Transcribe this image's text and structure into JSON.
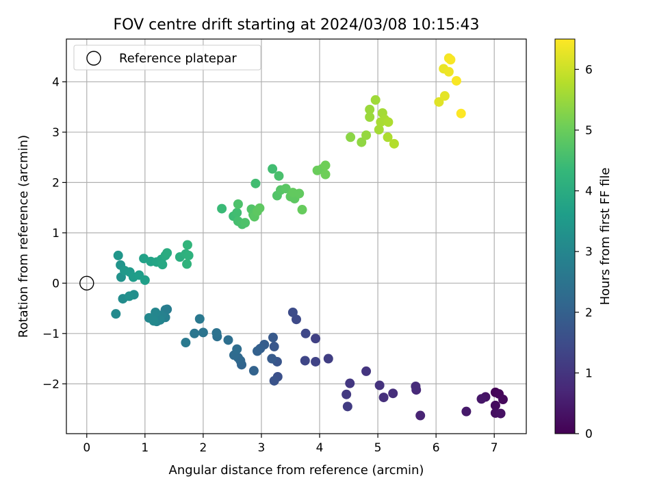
{
  "chart_data": {
    "type": "scatter",
    "title": "FOV centre drift starting at 2024/03/08 10:15:43",
    "xlabel": "Angular distance from reference (arcmin)",
    "ylabel": "Rotation from reference (arcmin)",
    "xlim": [
      -0.35,
      7.55
    ],
    "ylim": [
      -2.99,
      4.85
    ],
    "xticks": [
      "0",
      "1",
      "2",
      "3",
      "4",
      "5",
      "6",
      "7"
    ],
    "yticks": [
      "−2",
      "−1",
      "0",
      "1",
      "2",
      "3",
      "4"
    ],
    "grid": true,
    "legend": {
      "placement": "top-left",
      "entries": [
        "Reference platepar"
      ]
    },
    "reference_point": {
      "x": 0,
      "y": 0
    },
    "colorbar": {
      "label": "Hours from first FF file",
      "range": [
        0,
        6.5
      ],
      "ticks": [
        "0",
        "1",
        "2",
        "3",
        "4",
        "5",
        "6"
      ],
      "colormap": [
        "#440154",
        "#482878",
        "#3e4a89",
        "#31688e",
        "#26828e",
        "#1f9e89",
        "#35b779",
        "#6ece58",
        "#b5de2b",
        "#fde725"
      ]
    },
    "points": [
      {
        "x": 7.02,
        "y": -2.17,
        "t": 0.05
      },
      {
        "x": 7.08,
        "y": -2.2,
        "t": 0.1
      },
      {
        "x": 7.15,
        "y": -2.31,
        "t": 0.15
      },
      {
        "x": 7.02,
        "y": -2.43,
        "t": 0.2
      },
      {
        "x": 7.02,
        "y": -2.58,
        "t": 0.25
      },
      {
        "x": 7.11,
        "y": -2.59,
        "t": 0.3
      },
      {
        "x": 6.85,
        "y": -2.26,
        "t": 0.35
      },
      {
        "x": 6.78,
        "y": -2.3,
        "t": 0.4
      },
      {
        "x": 6.52,
        "y": -2.55,
        "t": 0.45
      },
      {
        "x": 5.73,
        "y": -2.63,
        "t": 0.65
      },
      {
        "x": 5.66,
        "y": -2.12,
        "t": 0.75
      },
      {
        "x": 5.65,
        "y": -2.05,
        "t": 0.8
      },
      {
        "x": 5.26,
        "y": -2.19,
        "t": 0.85
      },
      {
        "x": 5.1,
        "y": -2.27,
        "t": 0.9
      },
      {
        "x": 5.03,
        "y": -2.03,
        "t": 0.95
      },
      {
        "x": 4.8,
        "y": -1.75,
        "t": 1.0
      },
      {
        "x": 4.52,
        "y": -1.99,
        "t": 1.05
      },
      {
        "x": 4.46,
        "y": -2.21,
        "t": 1.1
      },
      {
        "x": 4.48,
        "y": -2.45,
        "t": 1.15
      },
      {
        "x": 4.15,
        "y": -1.5,
        "t": 1.2
      },
      {
        "x": 3.93,
        "y": -1.1,
        "t": 1.25
      },
      {
        "x": 3.93,
        "y": -1.56,
        "t": 1.3
      },
      {
        "x": 3.75,
        "y": -1.54,
        "t": 1.35
      },
      {
        "x": 3.76,
        "y": -1.0,
        "t": 1.4
      },
      {
        "x": 3.6,
        "y": -0.72,
        "t": 1.45
      },
      {
        "x": 3.54,
        "y": -0.58,
        "t": 1.5
      },
      {
        "x": 3.28,
        "y": -1.86,
        "t": 1.6
      },
      {
        "x": 3.22,
        "y": -1.94,
        "t": 1.65
      },
      {
        "x": 3.27,
        "y": -1.56,
        "t": 1.7
      },
      {
        "x": 3.22,
        "y": -1.26,
        "t": 1.75
      },
      {
        "x": 3.2,
        "y": -1.08,
        "t": 1.8
      },
      {
        "x": 3.18,
        "y": -1.5,
        "t": 1.85
      },
      {
        "x": 3.05,
        "y": -1.22,
        "t": 1.9
      },
      {
        "x": 2.98,
        "y": -1.3,
        "t": 1.95
      },
      {
        "x": 2.93,
        "y": -1.35,
        "t": 2.0
      },
      {
        "x": 2.87,
        "y": -1.74,
        "t": 2.05
      },
      {
        "x": 2.66,
        "y": -1.62,
        "t": 2.1
      },
      {
        "x": 2.64,
        "y": -1.54,
        "t": 2.15
      },
      {
        "x": 2.6,
        "y": -1.48,
        "t": 2.2
      },
      {
        "x": 2.53,
        "y": -1.43,
        "t": 2.25
      },
      {
        "x": 2.58,
        "y": -1.31,
        "t": 2.3
      },
      {
        "x": 2.43,
        "y": -1.13,
        "t": 2.35
      },
      {
        "x": 2.24,
        "y": -1.06,
        "t": 2.4
      },
      {
        "x": 2.23,
        "y": -0.99,
        "t": 2.45
      },
      {
        "x": 2.0,
        "y": -0.98,
        "t": 2.5
      },
      {
        "x": 1.85,
        "y": -1.0,
        "t": 2.55
      },
      {
        "x": 1.94,
        "y": -0.71,
        "t": 2.6
      },
      {
        "x": 1.7,
        "y": -1.18,
        "t": 2.65
      },
      {
        "x": 1.38,
        "y": -0.52,
        "t": 2.7
      },
      {
        "x": 1.35,
        "y": -0.53,
        "t": 2.75
      },
      {
        "x": 1.35,
        "y": -0.68,
        "t": 2.8
      },
      {
        "x": 1.28,
        "y": -0.64,
        "t": 2.85
      },
      {
        "x": 1.2,
        "y": -0.76,
        "t": 2.9
      },
      {
        "x": 1.26,
        "y": -0.73,
        "t": 2.95
      },
      {
        "x": 1.18,
        "y": -0.58,
        "t": 3.0
      },
      {
        "x": 1.07,
        "y": -0.69,
        "t": 3.05
      },
      {
        "x": 1.15,
        "y": -0.75,
        "t": 3.05
      },
      {
        "x": 0.5,
        "y": -0.61,
        "t": 3.1
      },
      {
        "x": 0.62,
        "y": -0.31,
        "t": 3.15
      },
      {
        "x": 0.81,
        "y": -0.23,
        "t": 3.2
      },
      {
        "x": 0.73,
        "y": -0.26,
        "t": 3.25
      },
      {
        "x": 0.59,
        "y": 0.12,
        "t": 3.3
      },
      {
        "x": 0.58,
        "y": 0.36,
        "t": 3.35
      },
      {
        "x": 0.54,
        "y": 0.55,
        "t": 3.4
      },
      {
        "x": 0.65,
        "y": 0.25,
        "t": 3.45
      },
      {
        "x": 0.74,
        "y": 0.22,
        "t": 3.5
      },
      {
        "x": 0.8,
        "y": 0.12,
        "t": 3.55
      },
      {
        "x": 0.9,
        "y": 0.16,
        "t": 3.6
      },
      {
        "x": 1.0,
        "y": 0.06,
        "t": 3.65
      },
      {
        "x": 0.98,
        "y": 0.49,
        "t": 3.7
      },
      {
        "x": 1.1,
        "y": 0.43,
        "t": 3.75
      },
      {
        "x": 1.2,
        "y": 0.42,
        "t": 3.8
      },
      {
        "x": 1.28,
        "y": 0.47,
        "t": 3.85
      },
      {
        "x": 1.3,
        "y": 0.37,
        "t": 3.9
      },
      {
        "x": 1.35,
        "y": 0.55,
        "t": 3.95
      },
      {
        "x": 1.38,
        "y": 0.6,
        "t": 4.0
      },
      {
        "x": 1.6,
        "y": 0.52,
        "t": 4.05
      },
      {
        "x": 1.7,
        "y": 0.58,
        "t": 4.1
      },
      {
        "x": 1.75,
        "y": 0.55,
        "t": 4.15
      },
      {
        "x": 1.72,
        "y": 0.38,
        "t": 4.2
      },
      {
        "x": 1.73,
        "y": 0.76,
        "t": 4.25
      },
      {
        "x": 2.32,
        "y": 1.48,
        "t": 4.4
      },
      {
        "x": 2.52,
        "y": 1.33,
        "t": 4.45
      },
      {
        "x": 2.58,
        "y": 1.4,
        "t": 4.5
      },
      {
        "x": 2.6,
        "y": 1.23,
        "t": 4.55
      },
      {
        "x": 2.67,
        "y": 1.17,
        "t": 4.6
      },
      {
        "x": 2.72,
        "y": 1.2,
        "t": 4.65
      },
      {
        "x": 2.6,
        "y": 1.57,
        "t": 4.65
      },
      {
        "x": 2.83,
        "y": 1.47,
        "t": 4.7
      },
      {
        "x": 2.86,
        "y": 1.36,
        "t": 4.75
      },
      {
        "x": 2.88,
        "y": 1.32,
        "t": 4.8
      },
      {
        "x": 2.93,
        "y": 1.43,
        "t": 4.85
      },
      {
        "x": 2.97,
        "y": 1.49,
        "t": 4.85
      },
      {
        "x": 2.9,
        "y": 1.98,
        "t": 4.5
      },
      {
        "x": 3.19,
        "y": 2.27,
        "t": 4.5
      },
      {
        "x": 3.3,
        "y": 2.13,
        "t": 4.6
      },
      {
        "x": 3.27,
        "y": 1.74,
        "t": 4.7
      },
      {
        "x": 3.33,
        "y": 1.85,
        "t": 4.75
      },
      {
        "x": 3.42,
        "y": 1.88,
        "t": 4.8
      },
      {
        "x": 3.5,
        "y": 1.72,
        "t": 4.85
      },
      {
        "x": 3.57,
        "y": 1.68,
        "t": 4.85
      },
      {
        "x": 3.54,
        "y": 1.8,
        "t": 4.9
      },
      {
        "x": 3.65,
        "y": 1.78,
        "t": 4.9
      },
      {
        "x": 3.7,
        "y": 1.46,
        "t": 4.95
      },
      {
        "x": 3.96,
        "y": 2.24,
        "t": 5.0
      },
      {
        "x": 4.04,
        "y": 2.27,
        "t": 5.0
      },
      {
        "x": 4.1,
        "y": 2.34,
        "t": 5.05
      },
      {
        "x": 4.1,
        "y": 2.16,
        "t": 5.05
      },
      {
        "x": 4.53,
        "y": 2.9,
        "t": 5.35
      },
      {
        "x": 4.72,
        "y": 2.8,
        "t": 5.4
      },
      {
        "x": 4.8,
        "y": 2.94,
        "t": 5.45
      },
      {
        "x": 4.86,
        "y": 3.45,
        "t": 5.5
      },
      {
        "x": 4.86,
        "y": 3.3,
        "t": 5.5
      },
      {
        "x": 4.96,
        "y": 3.64,
        "t": 5.55
      },
      {
        "x": 5.02,
        "y": 3.05,
        "t": 5.6
      },
      {
        "x": 5.08,
        "y": 3.38,
        "t": 5.6
      },
      {
        "x": 5.05,
        "y": 3.2,
        "t": 5.65
      },
      {
        "x": 5.12,
        "y": 3.25,
        "t": 5.65
      },
      {
        "x": 5.18,
        "y": 3.2,
        "t": 5.7
      },
      {
        "x": 5.17,
        "y": 2.9,
        "t": 5.7
      },
      {
        "x": 5.28,
        "y": 2.77,
        "t": 5.75
      },
      {
        "x": 6.05,
        "y": 3.6,
        "t": 6.2
      },
      {
        "x": 6.15,
        "y": 3.72,
        "t": 6.25
      },
      {
        "x": 6.13,
        "y": 4.26,
        "t": 6.3
      },
      {
        "x": 6.22,
        "y": 4.2,
        "t": 6.35
      },
      {
        "x": 6.22,
        "y": 4.47,
        "t": 6.4
      },
      {
        "x": 6.25,
        "y": 4.44,
        "t": 6.45
      },
      {
        "x": 6.35,
        "y": 4.02,
        "t": 6.45
      },
      {
        "x": 6.43,
        "y": 3.37,
        "t": 6.5
      }
    ]
  }
}
